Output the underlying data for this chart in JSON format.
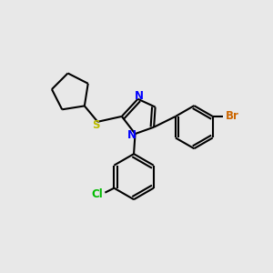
{
  "background_color": "#e8e8e8",
  "bond_color": "#000000",
  "atom_colors": {
    "N": "#0000ff",
    "S": "#bbbb00",
    "Cl": "#00bb00",
    "Br": "#cc6600"
  },
  "figsize": [
    3.0,
    3.0
  ],
  "dpi": 100,
  "lw": 1.5,
  "lw_ring": 1.4,
  "font_size": 8.5
}
